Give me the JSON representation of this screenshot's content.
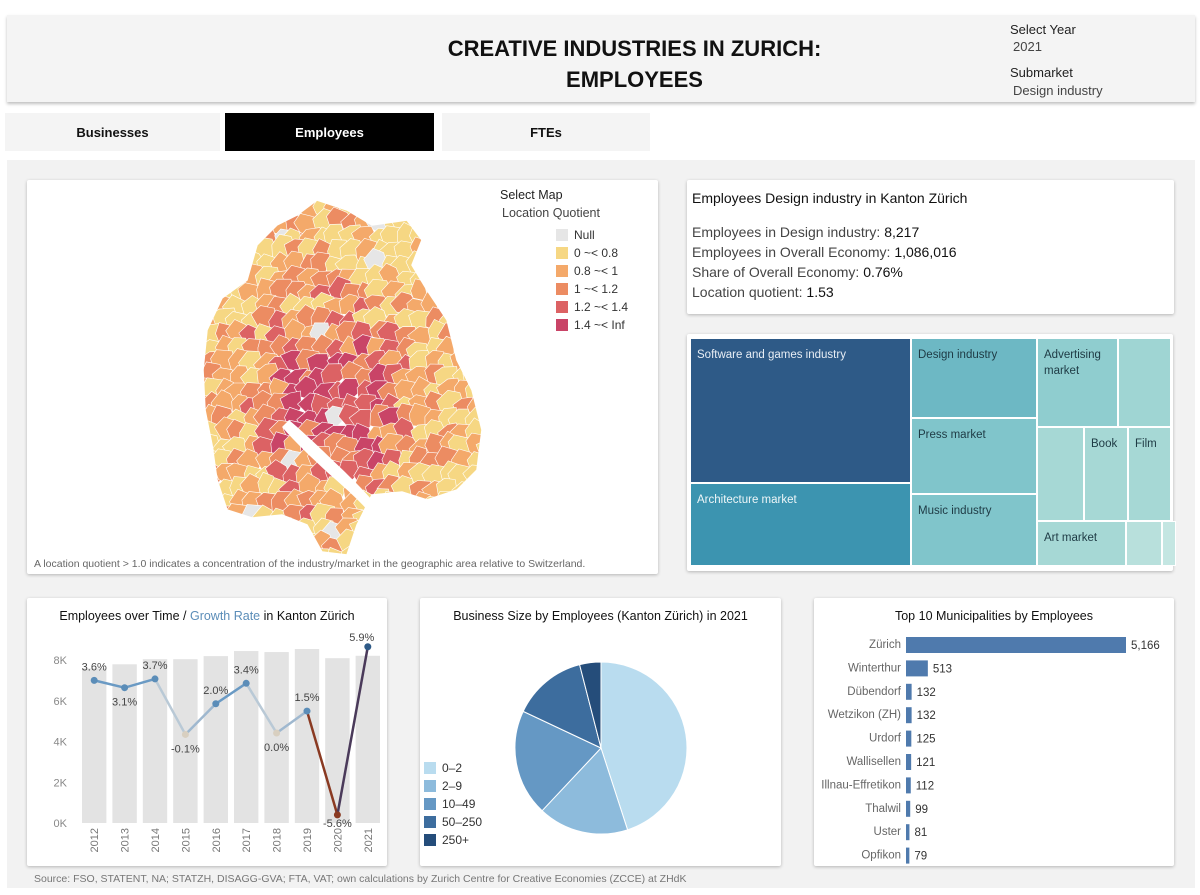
{
  "header": {
    "title_line1": "CREATIVE INDUSTRIES IN ZURICH:",
    "title_line2": "EMPLOYEES",
    "year_label": "Select Year",
    "year_value": "2021",
    "submarket_label": "Submarket",
    "submarket_value": "Design industry"
  },
  "tabs": [
    {
      "label": "Businesses",
      "active": false
    },
    {
      "label": "Employees",
      "active": true
    },
    {
      "label": "FTEs",
      "active": false
    }
  ],
  "map": {
    "select_label": "Select Map",
    "select_value": "Location Quotient",
    "legend": [
      {
        "label": "Null",
        "color": "#e6e6e6"
      },
      {
        "label": "0 ~< 0.8",
        "color": "#f6d783"
      },
      {
        "label": "0.8 ~< 1",
        "color": "#f4a96a"
      },
      {
        "label": "1 ~< 1.2",
        "color": "#ec8c62"
      },
      {
        "label": "1.2 ~< 1.4",
        "color": "#dc6264"
      },
      {
        "label": "1.4 ~< Inf",
        "color": "#c94467"
      }
    ],
    "note": "A location quotient > 1.0 indicates a concentration of the industry/market in the geographic area relative to Switzerland."
  },
  "kpi": {
    "title": "Employees Design industry in Kanton Zürich",
    "rows": [
      {
        "label": "Employees in Design industry:",
        "value": "8,217"
      },
      {
        "label": "Employees in Overall Economy:",
        "value": "1,086,016"
      },
      {
        "label": "Share of Overall Economy: ",
        "value": "0.76%"
      },
      {
        "label": "Location quotient:",
        "value": "1.53"
      }
    ]
  },
  "treemap": {
    "labels": {
      "software": "Software and games industry",
      "architecture": "Architecture market",
      "design": "Design industry",
      "press": "Press market",
      "music": "Music industry",
      "advertising": "Advertising market",
      "book": "Book",
      "film": "Film",
      "art": "Art market"
    },
    "colors": {
      "dark": "#2e5a87",
      "mid": "#3c94b0",
      "light": "#7cc1c9",
      "lighter": "#a3d6d3"
    }
  },
  "timeseries": {
    "title_a": "Employees over Time / ",
    "title_b": "Growth Rate",
    "title_c": " in Kanton Zürich",
    "growth_color": "#5b8db8"
  },
  "pie": {
    "title": "Business Size by Employees (Kanton Zürich) in 2021",
    "legend": [
      {
        "label": "0–2",
        "color": "#b9dcef"
      },
      {
        "label": "2–9",
        "color": "#8dbbdc"
      },
      {
        "label": "10–49",
        "color": "#6598c4"
      },
      {
        "label": "50–250",
        "color": "#3d6d9e"
      },
      {
        "label": "250+",
        "color": "#254d7a"
      }
    ]
  },
  "bars": {
    "title": "Top 10 Municipalities by Employees",
    "color": "#4f7aad"
  },
  "footer": {
    "source": "Source: FSO, STATENT, NA; STATZH, DISAGG-GVA; FTA, VAT; own calculations by Zurich Centre for Creative Economies (ZCCE) at ZHdK"
  },
  "chart_data": [
    {
      "type": "bar",
      "title": "Employees over Time / Growth Rate in Kanton Zürich",
      "categories": [
        "2012",
        "2013",
        "2014",
        "2015",
        "2016",
        "2017",
        "2018",
        "2019",
        "2020",
        "2021"
      ],
      "series": [
        {
          "name": "Employees",
          "values": [
            7600,
            7800,
            8050,
            8050,
            8200,
            8450,
            8400,
            8550,
            8100,
            8217
          ]
        },
        {
          "name": "Growth Rate",
          "values": [
            3.6,
            3.1,
            3.7,
            -0.1,
            2.0,
            3.4,
            0.0,
            1.5,
            -5.6,
            5.9
          ]
        }
      ],
      "value_labels": [
        "3.6%",
        "3.1%",
        "3.7%",
        "-0.1%",
        "2.0%",
        "3.4%",
        "0.0%",
        "1.5%",
        "-5.6%",
        "5.9%"
      ],
      "yticks": [
        "0K",
        "2K",
        "4K",
        "6K",
        "8K"
      ],
      "ylim": [
        0,
        8600
      ],
      "growth_ylim": [
        -6.5,
        6.5
      ]
    },
    {
      "type": "pie",
      "title": "Business Size by Employees (Kanton Zürich) in 2021",
      "categories": [
        "0–2",
        "2–9",
        "10–49",
        "50–250",
        "250+"
      ],
      "values": [
        45,
        17,
        20,
        14,
        4
      ]
    },
    {
      "type": "bar",
      "title": "Top 10 Municipalities by Employees",
      "categories": [
        "Zürich",
        "Winterthur",
        "Dübendorf",
        "Wetzikon (ZH)",
        "Urdorf",
        "Wallisellen",
        "Illnau-Effretikon",
        "Thalwil",
        "Uster",
        "Opfikon"
      ],
      "values": [
        5166,
        513,
        132,
        132,
        125,
        121,
        112,
        99,
        81,
        79
      ],
      "value_labels": [
        "5,166",
        "513",
        "132",
        "132",
        "125",
        "121",
        "112",
        "99",
        "81",
        "79"
      ],
      "orientation": "horizontal"
    }
  ]
}
